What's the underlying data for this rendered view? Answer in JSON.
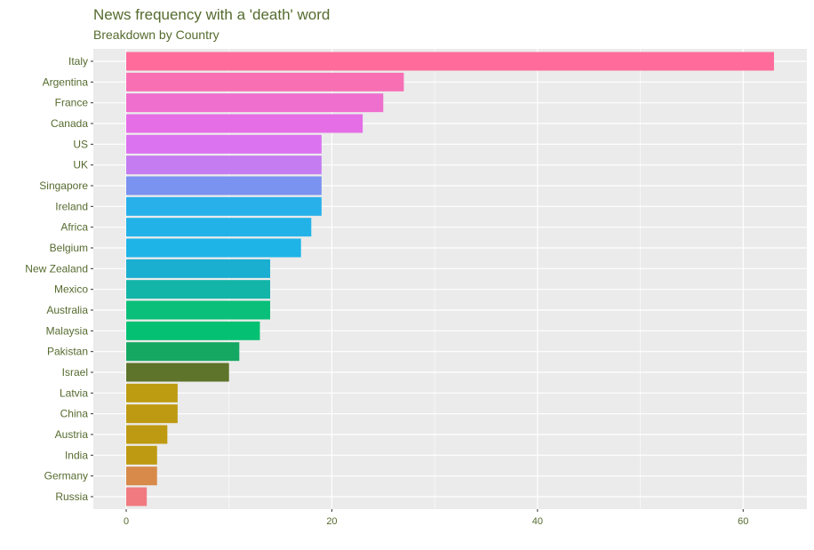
{
  "chart_data": {
    "type": "bar",
    "orientation": "horizontal",
    "title": "News frequency with a 'death' word",
    "subtitle": "Breakdown by Country",
    "xlabel": "",
    "ylabel": "",
    "xlim": [
      -3.2,
      66.2
    ],
    "x_ticks": [
      0,
      20,
      40,
      60
    ],
    "x_tick_labels": [
      "0",
      "20",
      "40",
      "60"
    ],
    "grid": true,
    "legend": "none",
    "panel_background": "#ebebeb",
    "grid_color": "#ffffff",
    "categories": [
      "Italy",
      "Argentina",
      "France",
      "Canada",
      "US",
      "UK",
      "Singapore",
      "Ireland",
      "Africa",
      "Belgium",
      "New Zealand",
      "Mexico",
      "Australia",
      "Malaysia",
      "Pakistan",
      "Israel",
      "Latvia",
      "China",
      "Austria",
      "India",
      "Germany",
      "Russia"
    ],
    "values": [
      63,
      27,
      25,
      23,
      19,
      19,
      19,
      19,
      18,
      17,
      14,
      14,
      14,
      13,
      11,
      10,
      5,
      5,
      4,
      3,
      3,
      2
    ],
    "colors": [
      "#ff6c9c",
      "#f86fb4",
      "#ee6fcd",
      "#e56ee6",
      "#db72f0",
      "#c47cf0",
      "#7a92f0",
      "#28b0ea",
      "#22b2e8",
      "#1eb4e8",
      "#1aaed0",
      "#12b5a8",
      "#0abf7a",
      "#04c072",
      "#14a863",
      "#5e742a",
      "#bd9c12",
      "#be9a12",
      "#be9a12",
      "#be9a12",
      "#d88a4a",
      "#f07a80"
    ]
  }
}
